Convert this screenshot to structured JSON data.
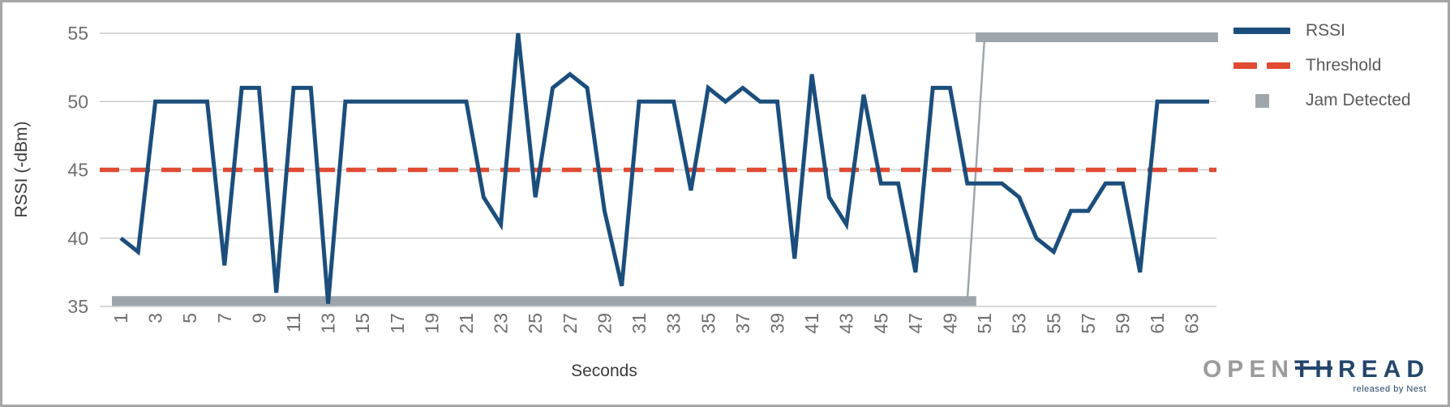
{
  "chart_data": {
    "type": "line",
    "title": "",
    "xlabel": "Seconds",
    "ylabel": "RSSI (-dBm)",
    "x_range": [
      1,
      64
    ],
    "ylim": [
      35,
      55
    ],
    "y_ticks": [
      35,
      40,
      45,
      50,
      55
    ],
    "x_ticks": [
      1,
      3,
      5,
      7,
      9,
      11,
      13,
      15,
      17,
      19,
      21,
      23,
      25,
      27,
      29,
      31,
      33,
      35,
      37,
      39,
      41,
      43,
      45,
      47,
      49,
      51,
      53,
      55,
      57,
      59,
      61,
      63
    ],
    "grid": true,
    "legend_position": "right",
    "series": [
      {
        "name": "RSSI",
        "type": "line",
        "color": "#1b4e7c",
        "values": [
          40,
          39,
          50,
          50,
          50,
          50,
          38,
          51,
          51,
          36,
          51,
          51,
          35.2,
          50,
          50,
          50,
          50,
          50,
          50,
          50,
          50,
          43,
          41,
          55,
          43,
          51,
          52,
          51,
          42,
          36.5,
          50,
          50,
          50,
          43.5,
          51,
          50,
          51,
          50,
          50,
          38.5,
          52,
          43,
          41,
          50.5,
          44,
          44,
          37.5,
          51,
          51,
          44,
          44,
          44,
          43,
          40,
          39,
          42,
          42,
          44,
          44,
          37.5,
          50,
          50,
          50,
          50
        ]
      },
      {
        "name": "Threshold",
        "type": "threshold",
        "color": "#e04a33",
        "value": 45
      },
      {
        "name": "Jam Detected",
        "type": "jam",
        "color": "#9ea6ac",
        "low_value": 35.4,
        "high_value": 54.7,
        "low_x_end": 50,
        "high_x_start": 51
      }
    ]
  },
  "axis": {
    "grid_color": "#cccccc",
    "tick_color": "#6f6f6f",
    "title_color": "#3a3a3a"
  },
  "branding": {
    "open": "OPEN",
    "thread": "THREAD",
    "tagline": "released by Nest"
  }
}
